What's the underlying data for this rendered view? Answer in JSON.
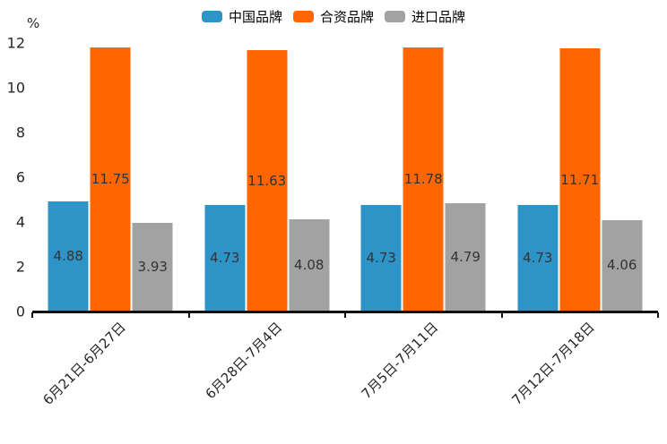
{
  "chart_data": {
    "type": "bar",
    "title": "",
    "ylabel": "%",
    "xlabel": "",
    "categories": [
      "6月21日-6月27日",
      "6月28日-7月4日",
      "7月5日-7月11日",
      "7月12日-7月18日"
    ],
    "series": [
      {
        "name": "中国品牌",
        "color": "#2e94c8",
        "values": [
          4.88,
          4.73,
          4.73,
          4.73
        ]
      },
      {
        "name": "合资品牌",
        "color": "#fe6602",
        "values": [
          11.75,
          11.63,
          11.78,
          11.71
        ]
      },
      {
        "name": "进口品牌",
        "color": "#a2a2a2",
        "values": [
          3.93,
          4.08,
          4.79,
          4.06
        ]
      }
    ],
    "yticks": [
      0,
      2,
      4,
      6,
      8,
      10,
      12
    ],
    "ylim": [
      0,
      12
    ],
    "grid": false,
    "legend_position": "top-center",
    "value_labels": "inside-middle",
    "axis_color": "#111111"
  }
}
